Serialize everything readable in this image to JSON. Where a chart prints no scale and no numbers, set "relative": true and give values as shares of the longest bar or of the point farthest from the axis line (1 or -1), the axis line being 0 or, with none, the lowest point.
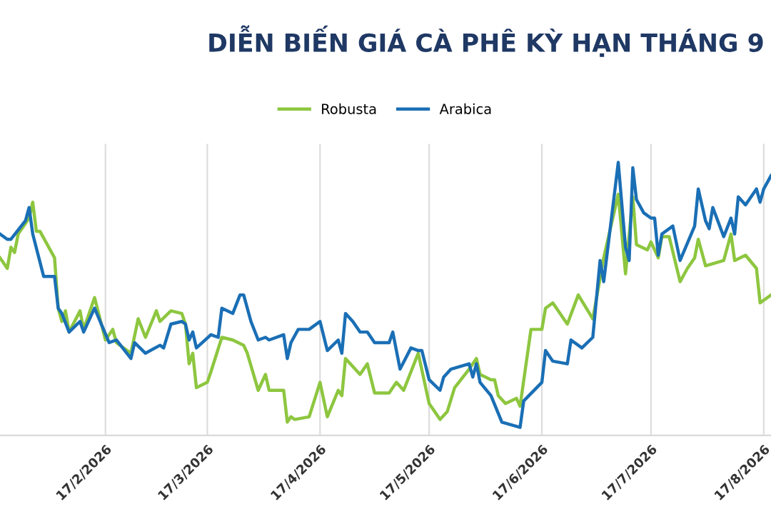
{
  "chart_data": {
    "type": "line",
    "title": "DIỄN BIẾN GIÁ CÀ PHÊ KỲ HẠN THÁNG 9",
    "relative": true,
    "grid": "x",
    "legend": "top",
    "marker": "none",
    "line_style": "solid",
    "xlim": [
      "2026-01-19",
      "2026-08-19"
    ],
    "xticks": [
      {
        "value": "2026-02-17",
        "label": "17/2/2026"
      },
      {
        "value": "2026-03-17",
        "label": "17/3/2026"
      },
      {
        "value": "2026-04-17",
        "label": "17/4/2026"
      },
      {
        "value": "2026-05-17",
        "label": "17/5/2026"
      },
      {
        "value": "2026-06-17",
        "label": "17/6/2026"
      },
      {
        "value": "2026-07-17",
        "label": "17/7/2026"
      },
      {
        "value": "2026-08-17",
        "label": "17/8/2026"
      }
    ],
    "series": [
      {
        "name": "Robusta",
        "color": "#8dc63f",
        "x": [
          "2026-01-19",
          "2026-01-21",
          "2026-01-22",
          "2026-01-23",
          "2026-01-24",
          "2026-01-27",
          "2026-01-28",
          "2026-01-29",
          "2026-01-30",
          "2026-02-03",
          "2026-02-04",
          "2026-02-05",
          "2026-02-06",
          "2026-02-07",
          "2026-02-10",
          "2026-02-11",
          "2026-02-14",
          "2026-02-17",
          "2026-02-19",
          "2026-02-20",
          "2026-02-24",
          "2026-02-26",
          "2026-02-28",
          "2026-03-03",
          "2026-03-04",
          "2026-03-07",
          "2026-03-10",
          "2026-03-11",
          "2026-03-12",
          "2026-03-13",
          "2026-03-14",
          "2026-03-17",
          "2026-03-18",
          "2026-03-21",
          "2026-03-24",
          "2026-03-27",
          "2026-03-28",
          "2026-03-31",
          "2026-04-02",
          "2026-04-03",
          "2026-04-07",
          "2026-04-08",
          "2026-04-09",
          "2026-04-10",
          "2026-04-14",
          "2026-04-17",
          "2026-04-19",
          "2026-04-22",
          "2026-04-23",
          "2026-04-24",
          "2026-04-28",
          "2026-04-30",
          "2026-05-02",
          "2026-05-06",
          "2026-05-08",
          "2026-05-10",
          "2026-05-14",
          "2026-05-17",
          "2026-05-20",
          "2026-05-22",
          "2026-05-24",
          "2026-05-28",
          "2026-05-30",
          "2026-05-31",
          "2026-06-03",
          "2026-06-04",
          "2026-06-05",
          "2026-06-07",
          "2026-06-10",
          "2026-06-11",
          "2026-06-14",
          "2026-06-17",
          "2026-06-18",
          "2026-06-20",
          "2026-06-24",
          "2026-06-27",
          "2026-07-01",
          "2026-07-04",
          "2026-07-08",
          "2026-07-10",
          "2026-07-12",
          "2026-07-13",
          "2026-07-16",
          "2026-07-17",
          "2026-07-19",
          "2026-07-20",
          "2026-07-22",
          "2026-07-25",
          "2026-07-27",
          "2026-07-29",
          "2026-07-30",
          "2026-08-01",
          "2026-08-06",
          "2026-08-08",
          "2026-08-09",
          "2026-08-12",
          "2026-08-15",
          "2026-08-16",
          "2026-08-19"
        ],
        "values": [
          0.64,
          0.6,
          0.68,
          0.66,
          0.73,
          0.79,
          0.85,
          0.74,
          0.74,
          0.64,
          0.45,
          0.4,
          0.44,
          0.36,
          0.44,
          0.37,
          0.49,
          0.33,
          0.37,
          0.32,
          0.28,
          0.41,
          0.34,
          0.44,
          0.4,
          0.44,
          0.43,
          0.39,
          0.24,
          0.28,
          0.15,
          0.17,
          0.21,
          0.34,
          0.33,
          0.31,
          0.28,
          0.14,
          0.2,
          0.14,
          0.14,
          0.02,
          0.04,
          0.03,
          0.04,
          0.17,
          0.04,
          0.14,
          0.12,
          0.26,
          0.2,
          0.24,
          0.13,
          0.13,
          0.17,
          0.14,
          0.28,
          0.09,
          0.03,
          0.06,
          0.15,
          0.22,
          0.26,
          0.2,
          0.18,
          0.18,
          0.12,
          0.09,
          0.11,
          0.08,
          0.37,
          0.37,
          0.45,
          0.47,
          0.39,
          0.5,
          0.41,
          0.64,
          0.88,
          0.58,
          0.87,
          0.69,
          0.67,
          0.7,
          0.64,
          0.72,
          0.72,
          0.55,
          0.6,
          0.64,
          0.71,
          0.61,
          0.63,
          0.73,
          0.63,
          0.65,
          0.6,
          0.47,
          0.5
        ]
      },
      {
        "name": "Arabica",
        "color": "#1a6fb5",
        "x": [
          "2026-01-19",
          "2026-01-21",
          "2026-01-22",
          "2026-01-26",
          "2026-01-27",
          "2026-01-28",
          "2026-01-31",
          "2026-02-03",
          "2026-02-04",
          "2026-02-05",
          "2026-02-07",
          "2026-02-10",
          "2026-02-11",
          "2026-02-14",
          "2026-02-18",
          "2026-02-20",
          "2026-02-24",
          "2026-02-25",
          "2026-02-28",
          "2026-03-04",
          "2026-03-05",
          "2026-03-07",
          "2026-03-10",
          "2026-03-11",
          "2026-03-12",
          "2026-03-13",
          "2026-03-14",
          "2026-03-18",
          "2026-03-20",
          "2026-03-21",
          "2026-03-24",
          "2026-03-26",
          "2026-03-27",
          "2026-03-29",
          "2026-03-31",
          "2026-04-02",
          "2026-04-03",
          "2026-04-07",
          "2026-04-08",
          "2026-04-09",
          "2026-04-11",
          "2026-04-14",
          "2026-04-17",
          "2026-04-19",
          "2026-04-22",
          "2026-04-23",
          "2026-04-24",
          "2026-04-26",
          "2026-04-28",
          "2026-04-30",
          "2026-05-02",
          "2026-05-06",
          "2026-05-07",
          "2026-05-09",
          "2026-05-12",
          "2026-05-14",
          "2026-05-15",
          "2026-05-17",
          "2026-05-20",
          "2026-05-21",
          "2026-05-23",
          "2026-05-28",
          "2026-05-29",
          "2026-05-30",
          "2026-05-31",
          "2026-06-03",
          "2026-06-06",
          "2026-06-11",
          "2026-06-12",
          "2026-06-17",
          "2026-06-18",
          "2026-06-20",
          "2026-06-24",
          "2026-06-25",
          "2026-06-28",
          "2026-07-01",
          "2026-07-03",
          "2026-07-04",
          "2026-07-08",
          "2026-07-10",
          "2026-07-11",
          "2026-07-12",
          "2026-07-13",
          "2026-07-15",
          "2026-07-17",
          "2026-07-18",
          "2026-07-19",
          "2026-07-20",
          "2026-07-23",
          "2026-07-25",
          "2026-07-29",
          "2026-07-30",
          "2026-08-01",
          "2026-08-02",
          "2026-08-03",
          "2026-08-06",
          "2026-08-08",
          "2026-08-09",
          "2026-08-10",
          "2026-08-12",
          "2026-08-15",
          "2026-08-16",
          "2026-08-17",
          "2026-08-19"
        ],
        "values": [
          0.73,
          0.71,
          0.71,
          0.78,
          0.83,
          0.73,
          0.57,
          0.57,
          0.45,
          0.43,
          0.36,
          0.4,
          0.36,
          0.45,
          0.32,
          0.33,
          0.26,
          0.32,
          0.28,
          0.31,
          0.3,
          0.39,
          0.4,
          0.39,
          0.33,
          0.36,
          0.3,
          0.35,
          0.34,
          0.45,
          0.43,
          0.5,
          0.5,
          0.4,
          0.33,
          0.34,
          0.33,
          0.35,
          0.26,
          0.32,
          0.37,
          0.37,
          0.4,
          0.29,
          0.33,
          0.28,
          0.43,
          0.4,
          0.36,
          0.36,
          0.32,
          0.32,
          0.36,
          0.22,
          0.3,
          0.29,
          0.29,
          0.18,
          0.14,
          0.19,
          0.22,
          0.24,
          0.19,
          0.24,
          0.17,
          0.12,
          0.02,
          0,
          0.1,
          0.17,
          0.29,
          0.25,
          0.24,
          0.33,
          0.3,
          0.34,
          0.63,
          0.55,
          1,
          0.68,
          0.63,
          0.98,
          0.86,
          0.81,
          0.79,
          0.79,
          0.65,
          0.73,
          0.76,
          0.63,
          0.76,
          0.9,
          0.78,
          0.75,
          0.83,
          0.72,
          0.79,
          0.73,
          0.87,
          0.84,
          0.9,
          0.85,
          0.9,
          0.95
        ]
      }
    ]
  }
}
